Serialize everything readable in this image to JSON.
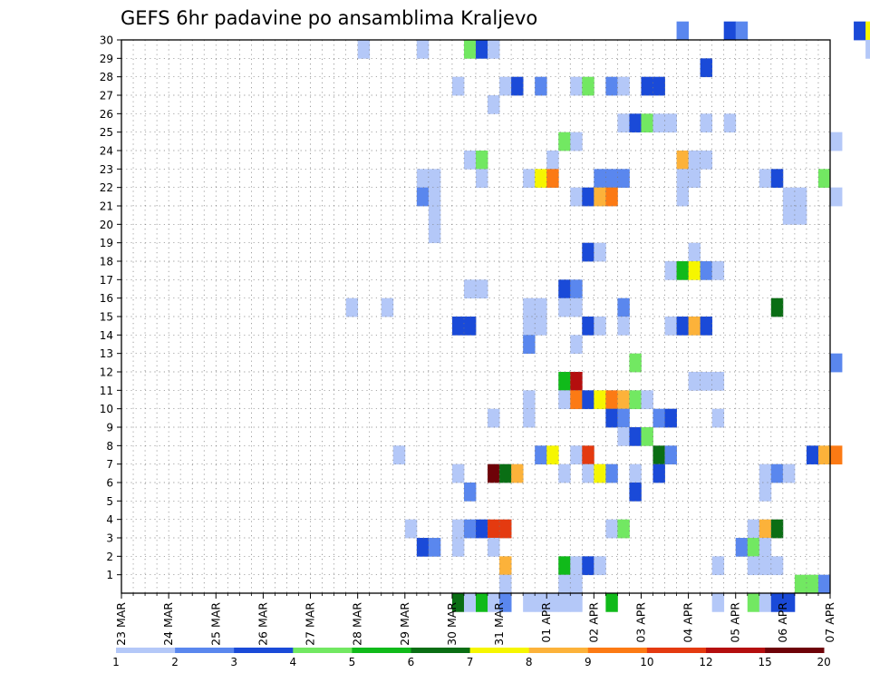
{
  "chart_data": {
    "type": "heatmap",
    "title": "GEFS 6hr padavine po ansamblima Kraljevo",
    "y_ticks": [
      "1",
      "2",
      "3",
      "4",
      "5",
      "6",
      "7",
      "8",
      "9",
      "10",
      "11",
      "12",
      "13",
      "14",
      "15",
      "16",
      "17",
      "18",
      "19",
      "20",
      "21",
      "22",
      "23",
      "24",
      "25",
      "26",
      "27",
      "28",
      "29",
      "30"
    ],
    "x_ticks": [
      "23 MAR",
      "24 MAR",
      "25 MAR",
      "26 MAR",
      "27 MAR",
      "28 MAR",
      "29 MAR",
      "30 MAR",
      "31 MAR",
      "01 APR",
      "02 APR",
      "03 APR",
      "04 APR",
      "05 APR",
      "06 APR",
      "07 APR"
    ],
    "steps_per_day": 4,
    "x_range_steps": [
      0,
      60
    ],
    "y_range": [
      0,
      30
    ],
    "grid": true,
    "legend_position": "bottom",
    "legend_ticks": [
      "1",
      "2",
      "3",
      "4",
      "5",
      "6",
      "7",
      "8",
      "9",
      "10",
      "12",
      "15",
      "20"
    ],
    "legend_colors": [
      "#b4c8f8",
      "#5a87ee",
      "#1a4ad8",
      "#72e862",
      "#10ba1a",
      "#0a6e14",
      "#f6f600",
      "#fcb23a",
      "#fc7a14",
      "#e43a10",
      "#b40e0e",
      "#6e0208"
    ],
    "cells": [
      [
        47,
        30,
        1
      ],
      [
        51,
        30,
        2
      ],
      [
        52,
        30,
        1
      ],
      [
        62,
        30,
        2
      ],
      [
        63,
        30,
        6
      ],
      [
        20,
        29,
        0
      ],
      [
        25,
        29,
        0
      ],
      [
        29,
        29,
        3
      ],
      [
        30,
        29,
        2
      ],
      [
        31,
        29,
        0
      ],
      [
        63,
        29,
        0
      ],
      [
        64,
        29,
        6
      ],
      [
        67,
        29,
        0
      ],
      [
        68,
        29,
        2
      ],
      [
        69,
        29,
        2
      ],
      [
        70,
        29,
        1
      ],
      [
        49,
        28,
        2
      ],
      [
        28,
        27,
        0
      ],
      [
        32,
        27,
        0
      ],
      [
        33,
        27,
        2
      ],
      [
        35,
        27,
        1
      ],
      [
        38,
        27,
        0
      ],
      [
        39,
        27,
        3
      ],
      [
        41,
        27,
        1
      ],
      [
        42,
        27,
        0
      ],
      [
        44,
        27,
        2
      ],
      [
        45,
        27,
        2
      ],
      [
        31,
        26,
        0
      ],
      [
        42,
        25,
        0
      ],
      [
        43,
        25,
        2
      ],
      [
        44,
        25,
        3
      ],
      [
        45,
        25,
        0
      ],
      [
        46,
        25,
        0
      ],
      [
        49,
        25,
        0
      ],
      [
        51,
        25,
        0
      ],
      [
        37,
        24,
        3
      ],
      [
        38,
        24,
        0
      ],
      [
        60,
        24,
        0
      ],
      [
        29,
        23,
        0
      ],
      [
        30,
        23,
        3
      ],
      [
        36,
        23,
        0
      ],
      [
        47,
        23,
        7
      ],
      [
        48,
        23,
        0
      ],
      [
        49,
        23,
        0
      ],
      [
        25,
        22,
        0
      ],
      [
        26,
        22,
        0
      ],
      [
        30,
        22,
        0
      ],
      [
        34,
        22,
        0
      ],
      [
        35,
        22,
        6
      ],
      [
        36,
        22,
        8
      ],
      [
        40,
        22,
        1
      ],
      [
        41,
        22,
        1
      ],
      [
        42,
        22,
        1
      ],
      [
        47,
        22,
        0
      ],
      [
        48,
        22,
        0
      ],
      [
        54,
        22,
        0
      ],
      [
        55,
        22,
        2
      ],
      [
        59,
        22,
        3
      ],
      [
        25,
        21,
        1
      ],
      [
        26,
        21,
        0
      ],
      [
        38,
        21,
        0
      ],
      [
        39,
        21,
        2
      ],
      [
        40,
        21,
        7
      ],
      [
        41,
        21,
        8
      ],
      [
        47,
        21,
        0
      ],
      [
        56,
        21,
        0
      ],
      [
        57,
        21,
        0
      ],
      [
        60,
        21,
        0
      ],
      [
        26,
        20,
        0
      ],
      [
        56,
        20,
        0
      ],
      [
        57,
        20,
        0
      ],
      [
        26,
        19,
        0
      ],
      [
        39,
        18,
        2
      ],
      [
        40,
        18,
        0
      ],
      [
        48,
        18,
        0
      ],
      [
        46,
        17,
        0
      ],
      [
        47,
        17,
        4
      ],
      [
        48,
        17,
        6
      ],
      [
        49,
        17,
        1
      ],
      [
        50,
        17,
        0
      ],
      [
        29,
        16,
        0
      ],
      [
        30,
        16,
        0
      ],
      [
        37,
        16,
        2
      ],
      [
        38,
        16,
        1
      ],
      [
        19,
        15,
        0
      ],
      [
        22,
        15,
        0
      ],
      [
        34,
        15,
        0
      ],
      [
        35,
        15,
        0
      ],
      [
        37,
        15,
        0
      ],
      [
        38,
        15,
        0
      ],
      [
        42,
        15,
        1
      ],
      [
        55,
        15,
        5
      ],
      [
        28,
        14,
        2
      ],
      [
        29,
        14,
        2
      ],
      [
        34,
        14,
        0
      ],
      [
        35,
        14,
        0
      ],
      [
        39,
        14,
        2
      ],
      [
        40,
        14,
        0
      ],
      [
        42,
        14,
        0
      ],
      [
        46,
        14,
        0
      ],
      [
        47,
        14,
        2
      ],
      [
        48,
        14,
        7
      ],
      [
        49,
        14,
        2
      ],
      [
        34,
        13,
        1
      ],
      [
        38,
        13,
        0
      ],
      [
        43,
        12,
        3
      ],
      [
        60,
        12,
        1
      ],
      [
        37,
        11,
        4
      ],
      [
        38,
        11,
        10
      ],
      [
        48,
        11,
        0
      ],
      [
        49,
        11,
        0
      ],
      [
        50,
        11,
        0
      ],
      [
        34,
        10,
        0
      ],
      [
        37,
        10,
        0
      ],
      [
        38,
        10,
        8
      ],
      [
        39,
        10,
        2
      ],
      [
        40,
        10,
        6
      ],
      [
        41,
        10,
        8
      ],
      [
        42,
        10,
        7
      ],
      [
        43,
        10,
        3
      ],
      [
        44,
        10,
        0
      ],
      [
        31,
        9,
        0
      ],
      [
        34,
        9,
        0
      ],
      [
        41,
        9,
        2
      ],
      [
        42,
        9,
        1
      ],
      [
        45,
        9,
        1
      ],
      [
        46,
        9,
        2
      ],
      [
        50,
        9,
        0
      ],
      [
        42,
        8,
        0
      ],
      [
        43,
        8,
        2
      ],
      [
        44,
        8,
        3
      ],
      [
        23,
        7,
        0
      ],
      [
        35,
        7,
        1
      ],
      [
        36,
        7,
        6
      ],
      [
        38,
        7,
        0
      ],
      [
        39,
        7,
        9
      ],
      [
        45,
        7,
        5
      ],
      [
        46,
        7,
        1
      ],
      [
        58,
        7,
        2
      ],
      [
        59,
        7,
        7
      ],
      [
        60,
        7,
        8
      ],
      [
        28,
        6,
        0
      ],
      [
        31,
        6,
        11
      ],
      [
        32,
        6,
        5
      ],
      [
        33,
        6,
        7
      ],
      [
        37,
        6,
        0
      ],
      [
        39,
        6,
        0
      ],
      [
        40,
        6,
        6
      ],
      [
        41,
        6,
        1
      ],
      [
        43,
        6,
        0
      ],
      [
        45,
        6,
        2
      ],
      [
        54,
        6,
        0
      ],
      [
        55,
        6,
        1
      ],
      [
        56,
        6,
        0
      ],
      [
        29,
        5,
        1
      ],
      [
        43,
        5,
        2
      ],
      [
        54,
        5,
        0
      ],
      [
        24,
        3,
        0
      ],
      [
        28,
        3,
        0
      ],
      [
        29,
        3,
        1
      ],
      [
        30,
        3,
        2
      ],
      [
        31,
        3,
        9
      ],
      [
        32,
        3,
        9
      ],
      [
        41,
        3,
        0
      ],
      [
        42,
        3,
        3
      ],
      [
        53,
        3,
        0
      ],
      [
        54,
        3,
        7
      ],
      [
        55,
        3,
        5
      ],
      [
        25,
        2,
        2
      ],
      [
        26,
        2,
        1
      ],
      [
        28,
        2,
        0
      ],
      [
        31,
        2,
        0
      ],
      [
        52,
        2,
        1
      ],
      [
        53,
        2,
        3
      ],
      [
        54,
        2,
        0
      ],
      [
        32,
        1,
        7
      ],
      [
        37,
        1,
        4
      ],
      [
        38,
        1,
        0
      ],
      [
        39,
        1,
        2
      ],
      [
        40,
        1,
        0
      ],
      [
        50,
        1,
        0
      ],
      [
        53,
        1,
        0
      ],
      [
        54,
        1,
        0
      ],
      [
        55,
        1,
        0
      ],
      [
        32,
        0,
        0
      ],
      [
        37,
        0,
        0
      ],
      [
        38,
        0,
        0
      ],
      [
        57,
        0,
        3
      ],
      [
        58,
        0,
        3
      ],
      [
        59,
        0,
        1
      ],
      [
        28,
        -1,
        5
      ],
      [
        29,
        -1,
        0
      ],
      [
        30,
        -1,
        4
      ],
      [
        31,
        -1,
        0
      ],
      [
        32,
        -1,
        1
      ],
      [
        34,
        -1,
        0
      ],
      [
        35,
        -1,
        0
      ],
      [
        36,
        -1,
        0
      ],
      [
        37,
        -1,
        0
      ],
      [
        38,
        -1,
        0
      ],
      [
        41,
        -1,
        4
      ],
      [
        50,
        -1,
        0
      ],
      [
        53,
        -1,
        3
      ],
      [
        54,
        -1,
        0
      ],
      [
        55,
        -1,
        2
      ],
      [
        56,
        -1,
        2
      ]
    ]
  }
}
